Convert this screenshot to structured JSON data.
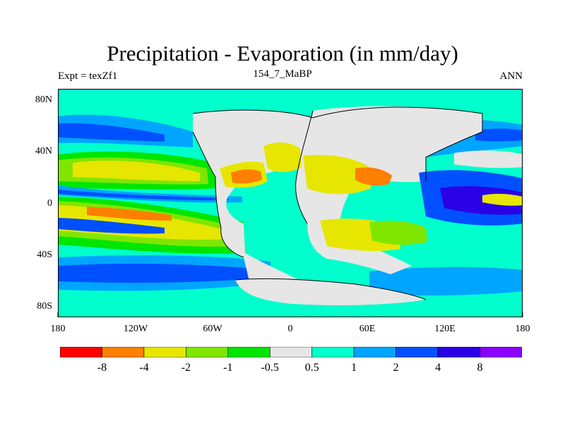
{
  "header": {
    "title": "Precipitation - Evaporation (in mm/day)",
    "left_label": "Expt = texZf1",
    "center_label": "154_7_MaBP",
    "right_label": "ANN"
  },
  "map": {
    "lat_ticks": [
      "80N",
      "40N",
      "0",
      "40S",
      "80S"
    ],
    "lon_ticks": [
      "180",
      "120W",
      "60W",
      "0",
      "60E",
      "120E",
      "180"
    ]
  },
  "colorbar": {
    "colors": [
      "#ff0000",
      "#ff7f00",
      "#e6e600",
      "#80e600",
      "#00e600",
      "#e6e6e6",
      "#00ffcc",
      "#00a5ff",
      "#0050ff",
      "#2a00e6",
      "#8a00ff"
    ],
    "labels": [
      "-8",
      "-4",
      "-2",
      "-1",
      "-0.5",
      "0.5",
      "1",
      "2",
      "4",
      "8"
    ]
  },
  "palette": {
    "wet_strong": "#2a00e6",
    "wet_med": "#0050ff",
    "wet": "#00a5ff",
    "wet_light": "#00ffcc",
    "neutral": "#e6e6e6",
    "dry_light": "#00e600",
    "dry": "#80e600",
    "dry_med": "#e6e600",
    "dry_strong": "#ff7f00"
  }
}
